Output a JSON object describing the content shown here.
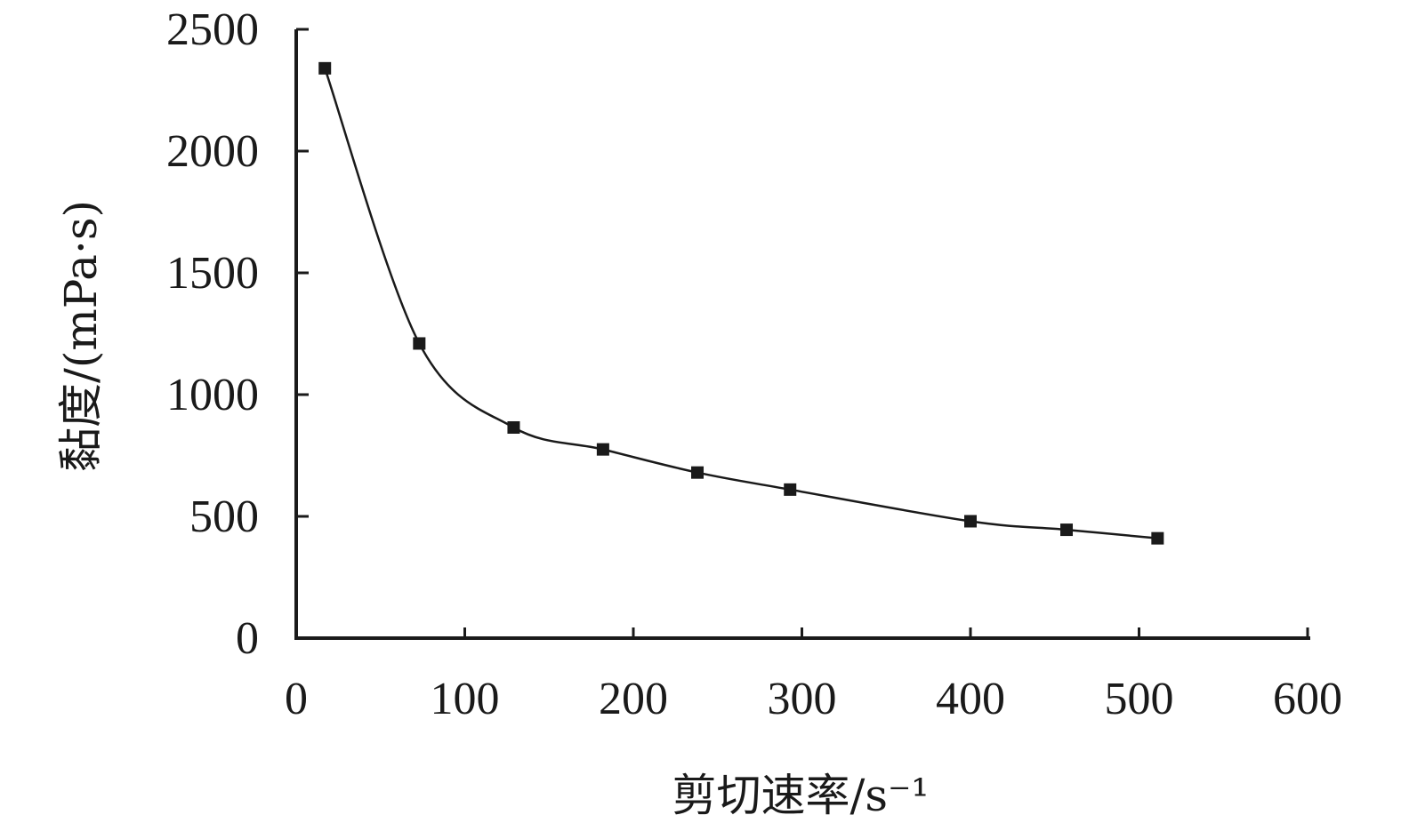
{
  "chart_data": {
    "type": "line",
    "title": "",
    "xlabel": "剪切速率/s⁻¹",
    "ylabel": "黏度/(mPa·s)",
    "xlim": [
      0,
      600
    ],
    "ylim": [
      0,
      2500
    ],
    "xticks": [
      0,
      100,
      200,
      300,
      400,
      500,
      600
    ],
    "yticks": [
      0,
      500,
      1000,
      1500,
      2000,
      2500
    ],
    "grid": false,
    "legend": "none",
    "marker": "square",
    "line_style": "smooth",
    "color": "#1a1a1a",
    "series": [
      {
        "x": [
          17,
          73,
          129,
          182,
          238,
          293,
          400,
          457,
          511
        ],
        "y": [
          2340,
          1210,
          865,
          775,
          680,
          610,
          480,
          445,
          410
        ]
      }
    ]
  }
}
